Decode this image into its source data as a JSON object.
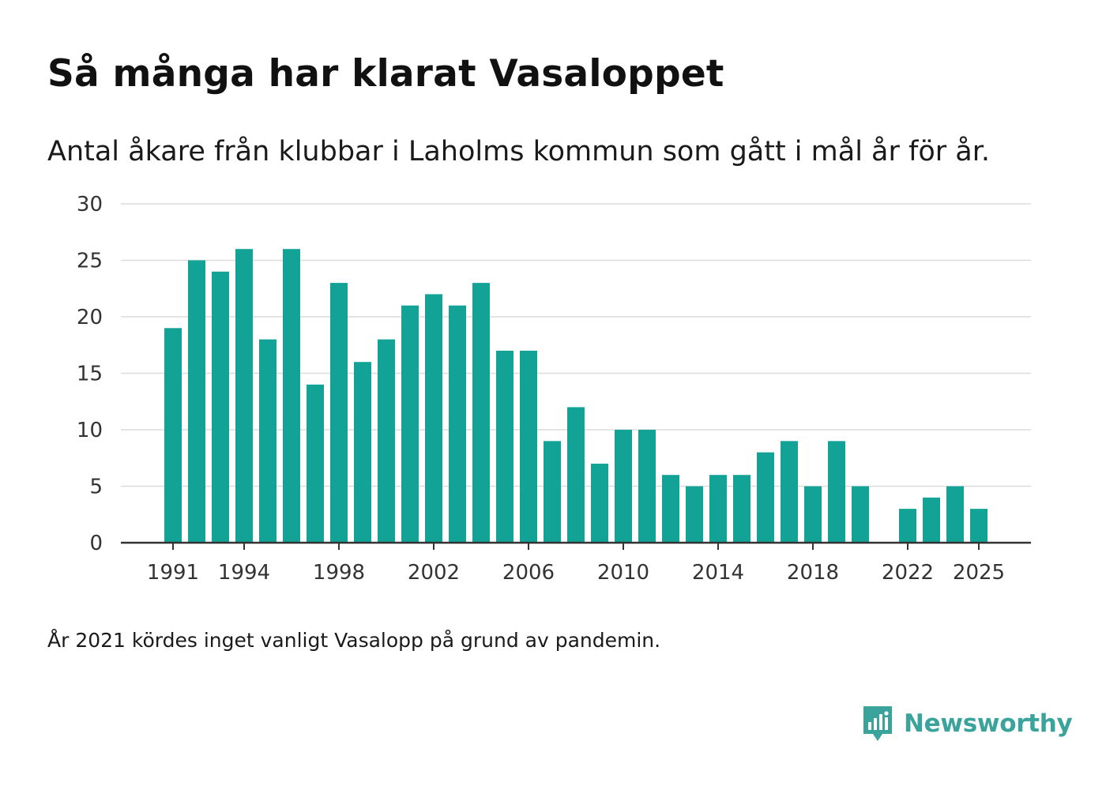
{
  "chart_data": {
    "type": "bar",
    "title": "Så många har klarat Vasaloppet",
    "subtitle": "Antal åkare från klubbar i Laholms kommun som gått i mål år för år.",
    "xlabel": "",
    "ylabel": "",
    "ylim": [
      0,
      30
    ],
    "yticks": [
      0,
      5,
      10,
      15,
      20,
      25,
      30
    ],
    "xtick_years": [
      1991,
      1994,
      1998,
      2002,
      2006,
      2010,
      2014,
      2018,
      2022,
      2025
    ],
    "grid": true,
    "bar_color": "#12a396",
    "x": [
      1991,
      1992,
      1993,
      1994,
      1995,
      1996,
      1997,
      1998,
      1999,
      2000,
      2001,
      2002,
      2003,
      2004,
      2005,
      2006,
      2007,
      2008,
      2009,
      2010,
      2011,
      2012,
      2013,
      2014,
      2015,
      2016,
      2017,
      2018,
      2019,
      2020,
      2021,
      2022,
      2023,
      2024,
      2025
    ],
    "values": [
      19,
      25,
      24,
      26,
      18,
      26,
      14,
      23,
      16,
      18,
      21,
      22,
      21,
      23,
      17,
      17,
      9,
      12,
      7,
      10,
      10,
      6,
      5,
      6,
      6,
      8,
      9,
      5,
      9,
      5,
      null,
      3,
      4,
      5,
      3
    ]
  },
  "note": "År 2021 kördes inget vanligt Vasalopp på grund av pandemin.",
  "brand": {
    "name": "Newsworthy",
    "icon": "newsworthy-logo-icon",
    "color": "#3aa39b"
  }
}
